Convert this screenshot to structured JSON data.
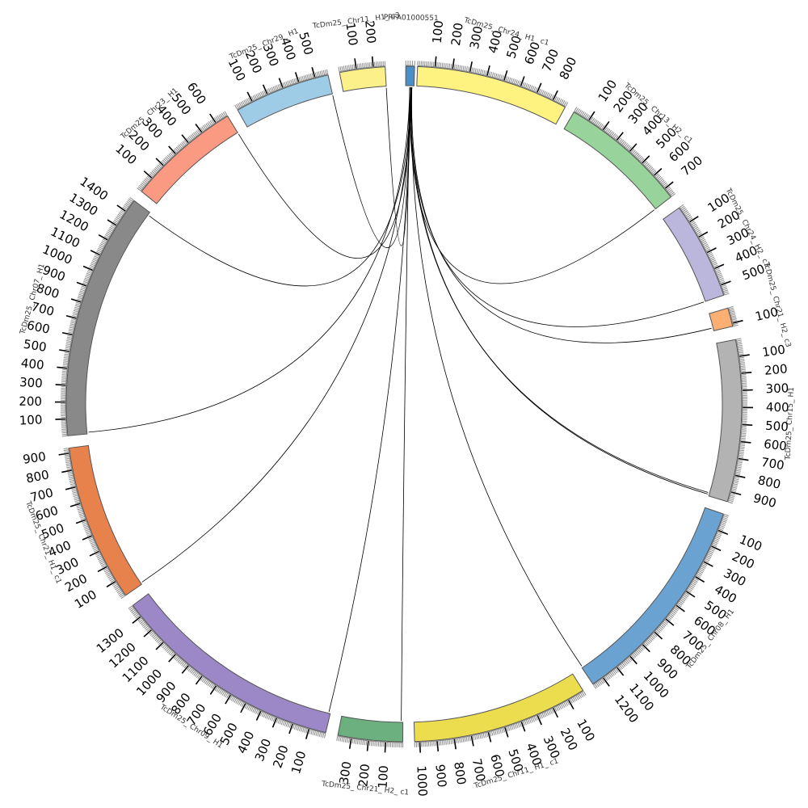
{
  "chromosomes": [
    {
      "name": "PRFA01000551",
      "length": 40,
      "color": "#4a90c8",
      "tick_labels": []
    },
    {
      "name": "TcDm25_ Chr24_ H1_ c1",
      "length": 880,
      "color": "#fef281",
      "tick_labels": [
        "100",
        "200",
        "300",
        "400",
        "500",
        "600",
        "700",
        "800"
      ]
    },
    {
      "name": "TcDm25_ Chr13_ H2_ c1",
      "length": 760,
      "color": "#98d39b",
      "tick_labels": [
        "100",
        "200",
        "300",
        "400",
        "500",
        "600",
        "700"
      ]
    },
    {
      "name": "TcDm25_ Chr24_ H2_ c3",
      "length": 560,
      "color": "#bbb6dc",
      "tick_labels": [
        "100",
        "200",
        "300",
        "400",
        "500"
      ]
    },
    {
      "name": "TcDm25_ Chr21_ H2_ c3",
      "length": 120,
      "color": "#fdae72",
      "tick_labels": [
        "100"
      ]
    },
    {
      "name": "TcDm25_ Chr15_ H1",
      "length": 960,
      "color": "#b3b3b3",
      "tick_labels": [
        "100",
        "200",
        "300",
        "400",
        "500",
        "600",
        "700",
        "800",
        "900"
      ]
    },
    {
      "name": "TcDm25_ Chr08_ H1",
      "length": 1270,
      "color": "#6aa2d2",
      "tick_labels": [
        "100",
        "200",
        "300",
        "400",
        "500",
        "600",
        "700",
        "800",
        "900",
        "1000",
        "1100",
        "1200"
      ]
    },
    {
      "name": "TcDm25_ Chr11_ H1_ c1",
      "length": 1030,
      "color": "#ecdd4f",
      "tick_labels": [
        "100",
        "200",
        "300",
        "400",
        "500",
        "600",
        "700",
        "800",
        "900",
        "1000"
      ]
    },
    {
      "name": "TcDm25_ Chr21_ H2_ c1",
      "length": 380,
      "color": "#6cb07f",
      "tick_labels": [
        "100",
        "200",
        "300"
      ]
    },
    {
      "name": "TcDm25_ Chr09_ H1",
      "length": 1380,
      "color": "#9c88c6",
      "tick_labels": [
        "100",
        "200",
        "300",
        "400",
        "500",
        "600",
        "700",
        "800",
        "900",
        "1000",
        "1100",
        "1200",
        "1300"
      ]
    },
    {
      "name": "TcDm25_ Chr21_ H1_ c1",
      "length": 930,
      "color": "#e8824c",
      "tick_labels": [
        "100",
        "200",
        "300",
        "400",
        "500",
        "600",
        "700",
        "800",
        "900"
      ]
    },
    {
      "name": "TcDm25_ Chr07_ H1",
      "length": 1480,
      "color": "#898989",
      "tick_labels": [
        "100",
        "200",
        "300",
        "400",
        "500",
        "600",
        "700",
        "800",
        "900",
        "1000",
        "1100",
        "1200",
        "1300",
        "1400"
      ]
    },
    {
      "name": "TcDm25_ Chr23_ H1",
      "length": 680,
      "color": "#fb9a82",
      "tick_labels": [
        "100",
        "200",
        "300",
        "400",
        "500",
        "600"
      ]
    },
    {
      "name": "TcDm25_ Chr29_ H1",
      "length": 580,
      "color": "#9ecbe5",
      "tick_labels": [
        "100",
        "200",
        "300",
        "400",
        "500"
      ]
    },
    {
      "name": "TcDm25_ Chr11_ H1_ c3",
      "length": 270,
      "color": "#fbf08a",
      "tick_labels": [
        "100",
        "200"
      ]
    }
  ],
  "links": [
    {
      "target": "TcDm25_ Chr13_ H2_ c1",
      "position": 760
    },
    {
      "target": "TcDm25_ Chr24_ H2_ c3",
      "position": 560
    },
    {
      "target": "TcDm25_ Chr21_ H2_ c3",
      "position": 100
    },
    {
      "target": "TcDm25_ Chr15_ H1",
      "position": 940
    },
    {
      "target": "TcDm25_ Chr15_ H1",
      "position": 950
    },
    {
      "target": "TcDm25_ Chr08_ H1",
      "position": 1265
    },
    {
      "target": "TcDm25_ Chr21_ H2_ c1",
      "position": 10
    },
    {
      "target": "TcDm25_ Chr09_ H1",
      "position": 10
    },
    {
      "target": "TcDm25_ Chr21_ H1_ c1",
      "position": 10
    },
    {
      "target": "TcDm25_ Chr07_ H1",
      "position": 10
    },
    {
      "target": "TcDm25_ Chr07_ H1",
      "position": 1460
    },
    {
      "target": "TcDm25_ Chr23_ H1",
      "position": 680
    },
    {
      "target": "TcDm25_ Chr29_ H1",
      "position": 580
    },
    {
      "target": "TcDm25_ Chr11_ H1_ c3",
      "position": 270
    }
  ]
}
